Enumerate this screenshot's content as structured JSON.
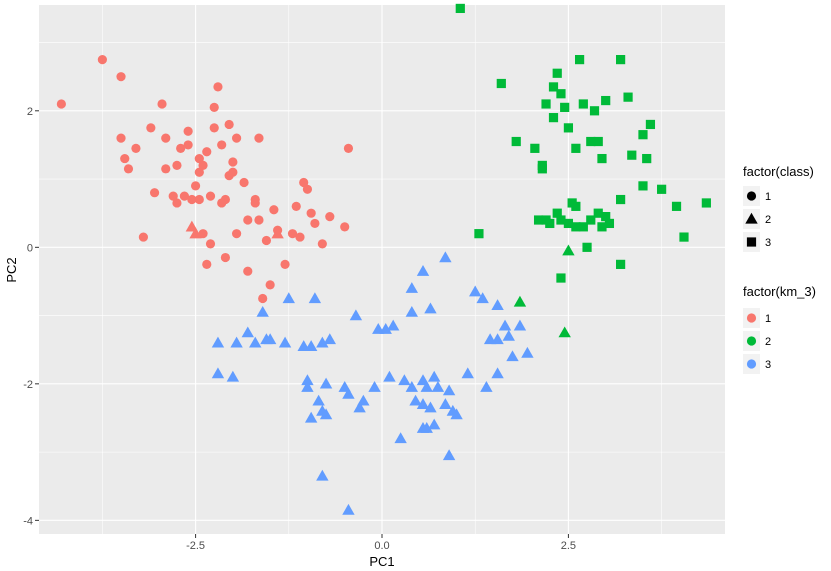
{
  "chart_data": {
    "type": "scatter",
    "xlabel": "PC1",
    "ylabel": "PC2",
    "xlim": [
      -4.6,
      4.6
    ],
    "ylim": [
      -4.2,
      3.55
    ],
    "x_ticks": [
      -2.5,
      0.0,
      2.5
    ],
    "x_tick_labels": [
      "-2.5",
      "0.0",
      "2.5"
    ],
    "y_ticks": [
      -4,
      -2,
      0,
      2
    ],
    "y_tick_labels": [
      "-4",
      "-2",
      "0",
      "2"
    ],
    "grid": true,
    "panel_background": "#ebebeb",
    "legend_position": "right",
    "legends": {
      "shape": {
        "title": "factor(class)",
        "labels": [
          "1",
          "2",
          "3"
        ]
      },
      "color": {
        "title": "factor(km_3)",
        "labels": [
          "1",
          "2",
          "3"
        ],
        "colors": [
          "#F8766D",
          "#00BA38",
          "#619CFF"
        ]
      }
    },
    "series": [
      {
        "name": "1",
        "color": "#F8766D",
        "points": [
          [
            -4.3,
            2.1
          ],
          [
            -3.75,
            2.75
          ],
          [
            -3.5,
            2.5
          ],
          [
            -3.5,
            1.6
          ],
          [
            -3.45,
            1.3
          ],
          [
            -3.4,
            1.15
          ],
          [
            -3.3,
            1.45
          ],
          [
            -3.2,
            0.15
          ],
          [
            -3.1,
            1.75
          ],
          [
            -3.05,
            0.8
          ],
          [
            -2.95,
            2.1
          ],
          [
            -2.9,
            1.15
          ],
          [
            -2.9,
            1.6
          ],
          [
            -2.8,
            0.75
          ],
          [
            -2.75,
            0.65
          ],
          [
            -2.75,
            1.2
          ],
          [
            -2.7,
            1.45
          ],
          [
            -2.65,
            0.75
          ],
          [
            -2.6,
            1.5
          ],
          [
            -2.55,
            0.7
          ],
          [
            -2.6,
            1.7
          ],
          [
            -2.45,
            1.1
          ],
          [
            -2.5,
            0.9
          ],
          [
            -2.4,
            1.2
          ],
          [
            -2.45,
            1.3
          ],
          [
            -2.35,
            1.4
          ],
          [
            -2.45,
            0.7
          ],
          [
            -2.4,
            0.2
          ],
          [
            -2.3,
            0.75
          ],
          [
            -2.3,
            0.05
          ],
          [
            -2.25,
            1.75
          ],
          [
            -2.2,
            2.35
          ],
          [
            -2.25,
            2.05
          ],
          [
            -2.15,
            1.5
          ],
          [
            -2.1,
            0.7
          ],
          [
            -2.05,
            1.8
          ],
          [
            -2.05,
            1.05
          ],
          [
            -2.0,
            1.1
          ],
          [
            -2.1,
            -0.15
          ],
          [
            -2.15,
            0.65
          ],
          [
            -2.0,
            1.25
          ],
          [
            -1.95,
            1.6
          ],
          [
            -1.85,
            0.95
          ],
          [
            -1.8,
            0.4
          ],
          [
            -1.7,
            0.7
          ],
          [
            -1.7,
            0.65
          ],
          [
            -1.65,
            0.4
          ],
          [
            -1.65,
            1.6
          ],
          [
            -1.55,
            0.1
          ],
          [
            -1.45,
            0.55
          ],
          [
            -1.4,
            0.25
          ],
          [
            -1.3,
            -0.25
          ],
          [
            -1.2,
            0.2
          ],
          [
            -1.15,
            0.6
          ],
          [
            -1.1,
            0.15
          ],
          [
            -1.0,
            0.85
          ],
          [
            -1.05,
            0.95
          ],
          [
            -0.9,
            0.35
          ],
          [
            -0.8,
            0.05
          ],
          [
            -0.7,
            0.45
          ],
          [
            -0.5,
            0.3
          ],
          [
            -0.45,
            1.45
          ],
          [
            -0.95,
            0.5
          ],
          [
            -2.55,
            0.3
          ],
          [
            -2.35,
            -0.25
          ],
          [
            -1.95,
            0.2
          ],
          [
            -2.5,
            0.2
          ],
          [
            -1.8,
            -0.35
          ],
          [
            -1.5,
            -0.55
          ],
          [
            -1.4,
            0.2
          ],
          [
            -1.6,
            -0.75
          ]
        ],
        "shapes": [
          "circle",
          "circle",
          "circle",
          "circle",
          "circle",
          "circle",
          "circle",
          "circle",
          "circle",
          "circle",
          "circle",
          "circle",
          "circle",
          "circle",
          "circle",
          "circle",
          "circle",
          "circle",
          "circle",
          "circle",
          "circle",
          "circle",
          "circle",
          "circle",
          "circle",
          "circle",
          "circle",
          "circle",
          "circle",
          "circle",
          "circle",
          "circle",
          "circle",
          "circle",
          "circle",
          "circle",
          "circle",
          "circle",
          "circle",
          "circle",
          "circle",
          "circle",
          "circle",
          "circle",
          "circle",
          "circle",
          "circle",
          "circle",
          "circle",
          "circle",
          "circle",
          "circle",
          "circle",
          "circle",
          "circle",
          "circle",
          "circle",
          "circle",
          "circle",
          "circle",
          "circle",
          "circle",
          "circle",
          "triangle",
          "circle",
          "circle",
          "triangle",
          "circle",
          "circle",
          "triangle",
          "circle"
        ]
      },
      {
        "name": "2",
        "color": "#00BA38",
        "points": [
          [
            1.05,
            3.5
          ],
          [
            1.6,
            2.4
          ],
          [
            1.8,
            1.55
          ],
          [
            1.3,
            0.2
          ],
          [
            2.05,
            1.45
          ],
          [
            2.15,
            1.2
          ],
          [
            2.2,
            2.1
          ],
          [
            2.3,
            2.35
          ],
          [
            2.3,
            1.9
          ],
          [
            2.35,
            2.55
          ],
          [
            2.4,
            2.25
          ],
          [
            2.45,
            2.05
          ],
          [
            2.5,
            1.75
          ],
          [
            2.6,
            1.45
          ],
          [
            2.65,
            2.75
          ],
          [
            2.7,
            2.1
          ],
          [
            2.8,
            1.55
          ],
          [
            2.85,
            2.0
          ],
          [
            2.9,
            1.55
          ],
          [
            2.95,
            1.3
          ],
          [
            3.0,
            2.15
          ],
          [
            3.2,
            2.75
          ],
          [
            3.3,
            2.2
          ],
          [
            3.35,
            1.35
          ],
          [
            3.5,
            1.65
          ],
          [
            3.55,
            1.3
          ],
          [
            3.6,
            1.8
          ],
          [
            3.5,
            0.9
          ],
          [
            3.75,
            0.85
          ],
          [
            3.95,
            0.6
          ],
          [
            4.05,
            0.15
          ],
          [
            4.35,
            0.65
          ],
          [
            2.1,
            0.4
          ],
          [
            2.2,
            0.4
          ],
          [
            2.25,
            0.35
          ],
          [
            2.35,
            0.5
          ],
          [
            2.4,
            0.4
          ],
          [
            2.55,
            0.65
          ],
          [
            2.6,
            0.6
          ],
          [
            2.7,
            0.3
          ],
          [
            2.8,
            0.4
          ],
          [
            2.9,
            0.5
          ],
          [
            3.0,
            0.45
          ],
          [
            3.05,
            0.35
          ],
          [
            3.2,
            0.7
          ],
          [
            2.75,
            0.0
          ],
          [
            3.2,
            -0.25
          ],
          [
            2.4,
            -0.45
          ],
          [
            2.5,
            -0.05
          ],
          [
            1.85,
            -0.8
          ],
          [
            2.45,
            -1.25
          ],
          [
            2.6,
            0.3
          ],
          [
            2.95,
            0.3
          ],
          [
            2.5,
            0.35
          ],
          [
            2.15,
            1.15
          ]
        ],
        "shapes": [
          "square",
          "square",
          "square",
          "square",
          "square",
          "square",
          "square",
          "square",
          "square",
          "square",
          "square",
          "square",
          "square",
          "square",
          "square",
          "square",
          "square",
          "square",
          "square",
          "square",
          "square",
          "square",
          "square",
          "square",
          "square",
          "square",
          "square",
          "square",
          "square",
          "square",
          "square",
          "square",
          "square",
          "square",
          "square",
          "square",
          "square",
          "square",
          "square",
          "square",
          "square",
          "square",
          "square",
          "square",
          "square",
          "square",
          "square",
          "square",
          "triangle",
          "triangle",
          "triangle",
          "square",
          "square",
          "square",
          "square"
        ]
      },
      {
        "name": "3",
        "color": "#619CFF",
        "points": [
          [
            -1.6,
            -0.95
          ],
          [
            -1.25,
            -0.75
          ],
          [
            -0.9,
            -0.75
          ],
          [
            -0.35,
            -1.0
          ],
          [
            -0.05,
            -1.2
          ],
          [
            0.15,
            -1.15
          ],
          [
            0.4,
            -0.95
          ],
          [
            0.65,
            -0.9
          ],
          [
            0.4,
            -0.6
          ],
          [
            0.55,
            -0.35
          ],
          [
            0.85,
            -0.15
          ],
          [
            1.25,
            -0.65
          ],
          [
            1.35,
            -0.75
          ],
          [
            1.55,
            -0.85
          ],
          [
            1.65,
            -1.15
          ],
          [
            1.7,
            -1.3
          ],
          [
            1.45,
            -1.35
          ],
          [
            1.55,
            -1.35
          ],
          [
            1.85,
            -1.15
          ],
          [
            1.95,
            -1.55
          ],
          [
            1.75,
            -1.6
          ],
          [
            1.55,
            -1.85
          ],
          [
            1.4,
            -2.05
          ],
          [
            1.15,
            -1.85
          ],
          [
            -2.2,
            -1.4
          ],
          [
            -1.95,
            -1.4
          ],
          [
            -1.8,
            -1.25
          ],
          [
            -1.7,
            -1.4
          ],
          [
            -1.55,
            -1.35
          ],
          [
            -1.5,
            -1.35
          ],
          [
            -1.3,
            -1.4
          ],
          [
            -1.05,
            -1.45
          ],
          [
            -0.95,
            -1.45
          ],
          [
            -0.8,
            -1.4
          ],
          [
            -0.7,
            -1.35
          ],
          [
            -2.2,
            -1.85
          ],
          [
            -2.0,
            -1.9
          ],
          [
            -1.0,
            -1.95
          ],
          [
            -1.0,
            -2.05
          ],
          [
            -0.75,
            -2.0
          ],
          [
            -0.85,
            -2.25
          ],
          [
            -0.5,
            -2.05
          ],
          [
            -0.45,
            -2.15
          ],
          [
            -0.3,
            -2.35
          ],
          [
            -0.25,
            -2.25
          ],
          [
            -0.1,
            -2.05
          ],
          [
            0.1,
            -1.9
          ],
          [
            0.3,
            -1.95
          ],
          [
            0.4,
            -2.05
          ],
          [
            0.55,
            -1.95
          ],
          [
            0.6,
            -2.05
          ],
          [
            0.7,
            -1.9
          ],
          [
            0.75,
            -2.05
          ],
          [
            0.9,
            -2.1
          ],
          [
            0.85,
            -2.3
          ],
          [
            0.55,
            -2.3
          ],
          [
            0.45,
            -2.25
          ],
          [
            0.65,
            -2.35
          ],
          [
            0.95,
            -2.4
          ],
          [
            1.0,
            -2.45
          ],
          [
            0.55,
            -2.65
          ],
          [
            0.6,
            -2.65
          ],
          [
            0.7,
            -2.6
          ],
          [
            0.25,
            -2.8
          ],
          [
            -0.75,
            -2.45
          ],
          [
            -0.95,
            -2.5
          ],
          [
            -0.8,
            -3.35
          ],
          [
            -0.45,
            -3.85
          ],
          [
            0.9,
            -3.05
          ],
          [
            0.05,
            -1.2
          ],
          [
            -0.8,
            -2.4
          ]
        ],
        "shapes": [
          "triangle",
          "triangle",
          "triangle",
          "triangle",
          "triangle",
          "triangle",
          "triangle",
          "triangle",
          "triangle",
          "triangle",
          "triangle",
          "triangle",
          "triangle",
          "triangle",
          "triangle",
          "triangle",
          "triangle",
          "triangle",
          "triangle",
          "triangle",
          "triangle",
          "triangle",
          "triangle",
          "triangle",
          "triangle",
          "triangle",
          "triangle",
          "triangle",
          "triangle",
          "triangle",
          "triangle",
          "triangle",
          "triangle",
          "triangle",
          "triangle",
          "triangle",
          "triangle",
          "triangle",
          "triangle",
          "triangle",
          "triangle",
          "triangle",
          "triangle",
          "triangle",
          "triangle",
          "triangle",
          "triangle",
          "triangle",
          "triangle",
          "triangle",
          "triangle",
          "triangle",
          "triangle",
          "triangle",
          "triangle",
          "triangle",
          "triangle",
          "triangle",
          "triangle",
          "triangle",
          "triangle",
          "triangle",
          "triangle",
          "triangle",
          "triangle",
          "triangle",
          "triangle",
          "triangle",
          "triangle",
          "triangle",
          "triangle"
        ]
      }
    ]
  }
}
